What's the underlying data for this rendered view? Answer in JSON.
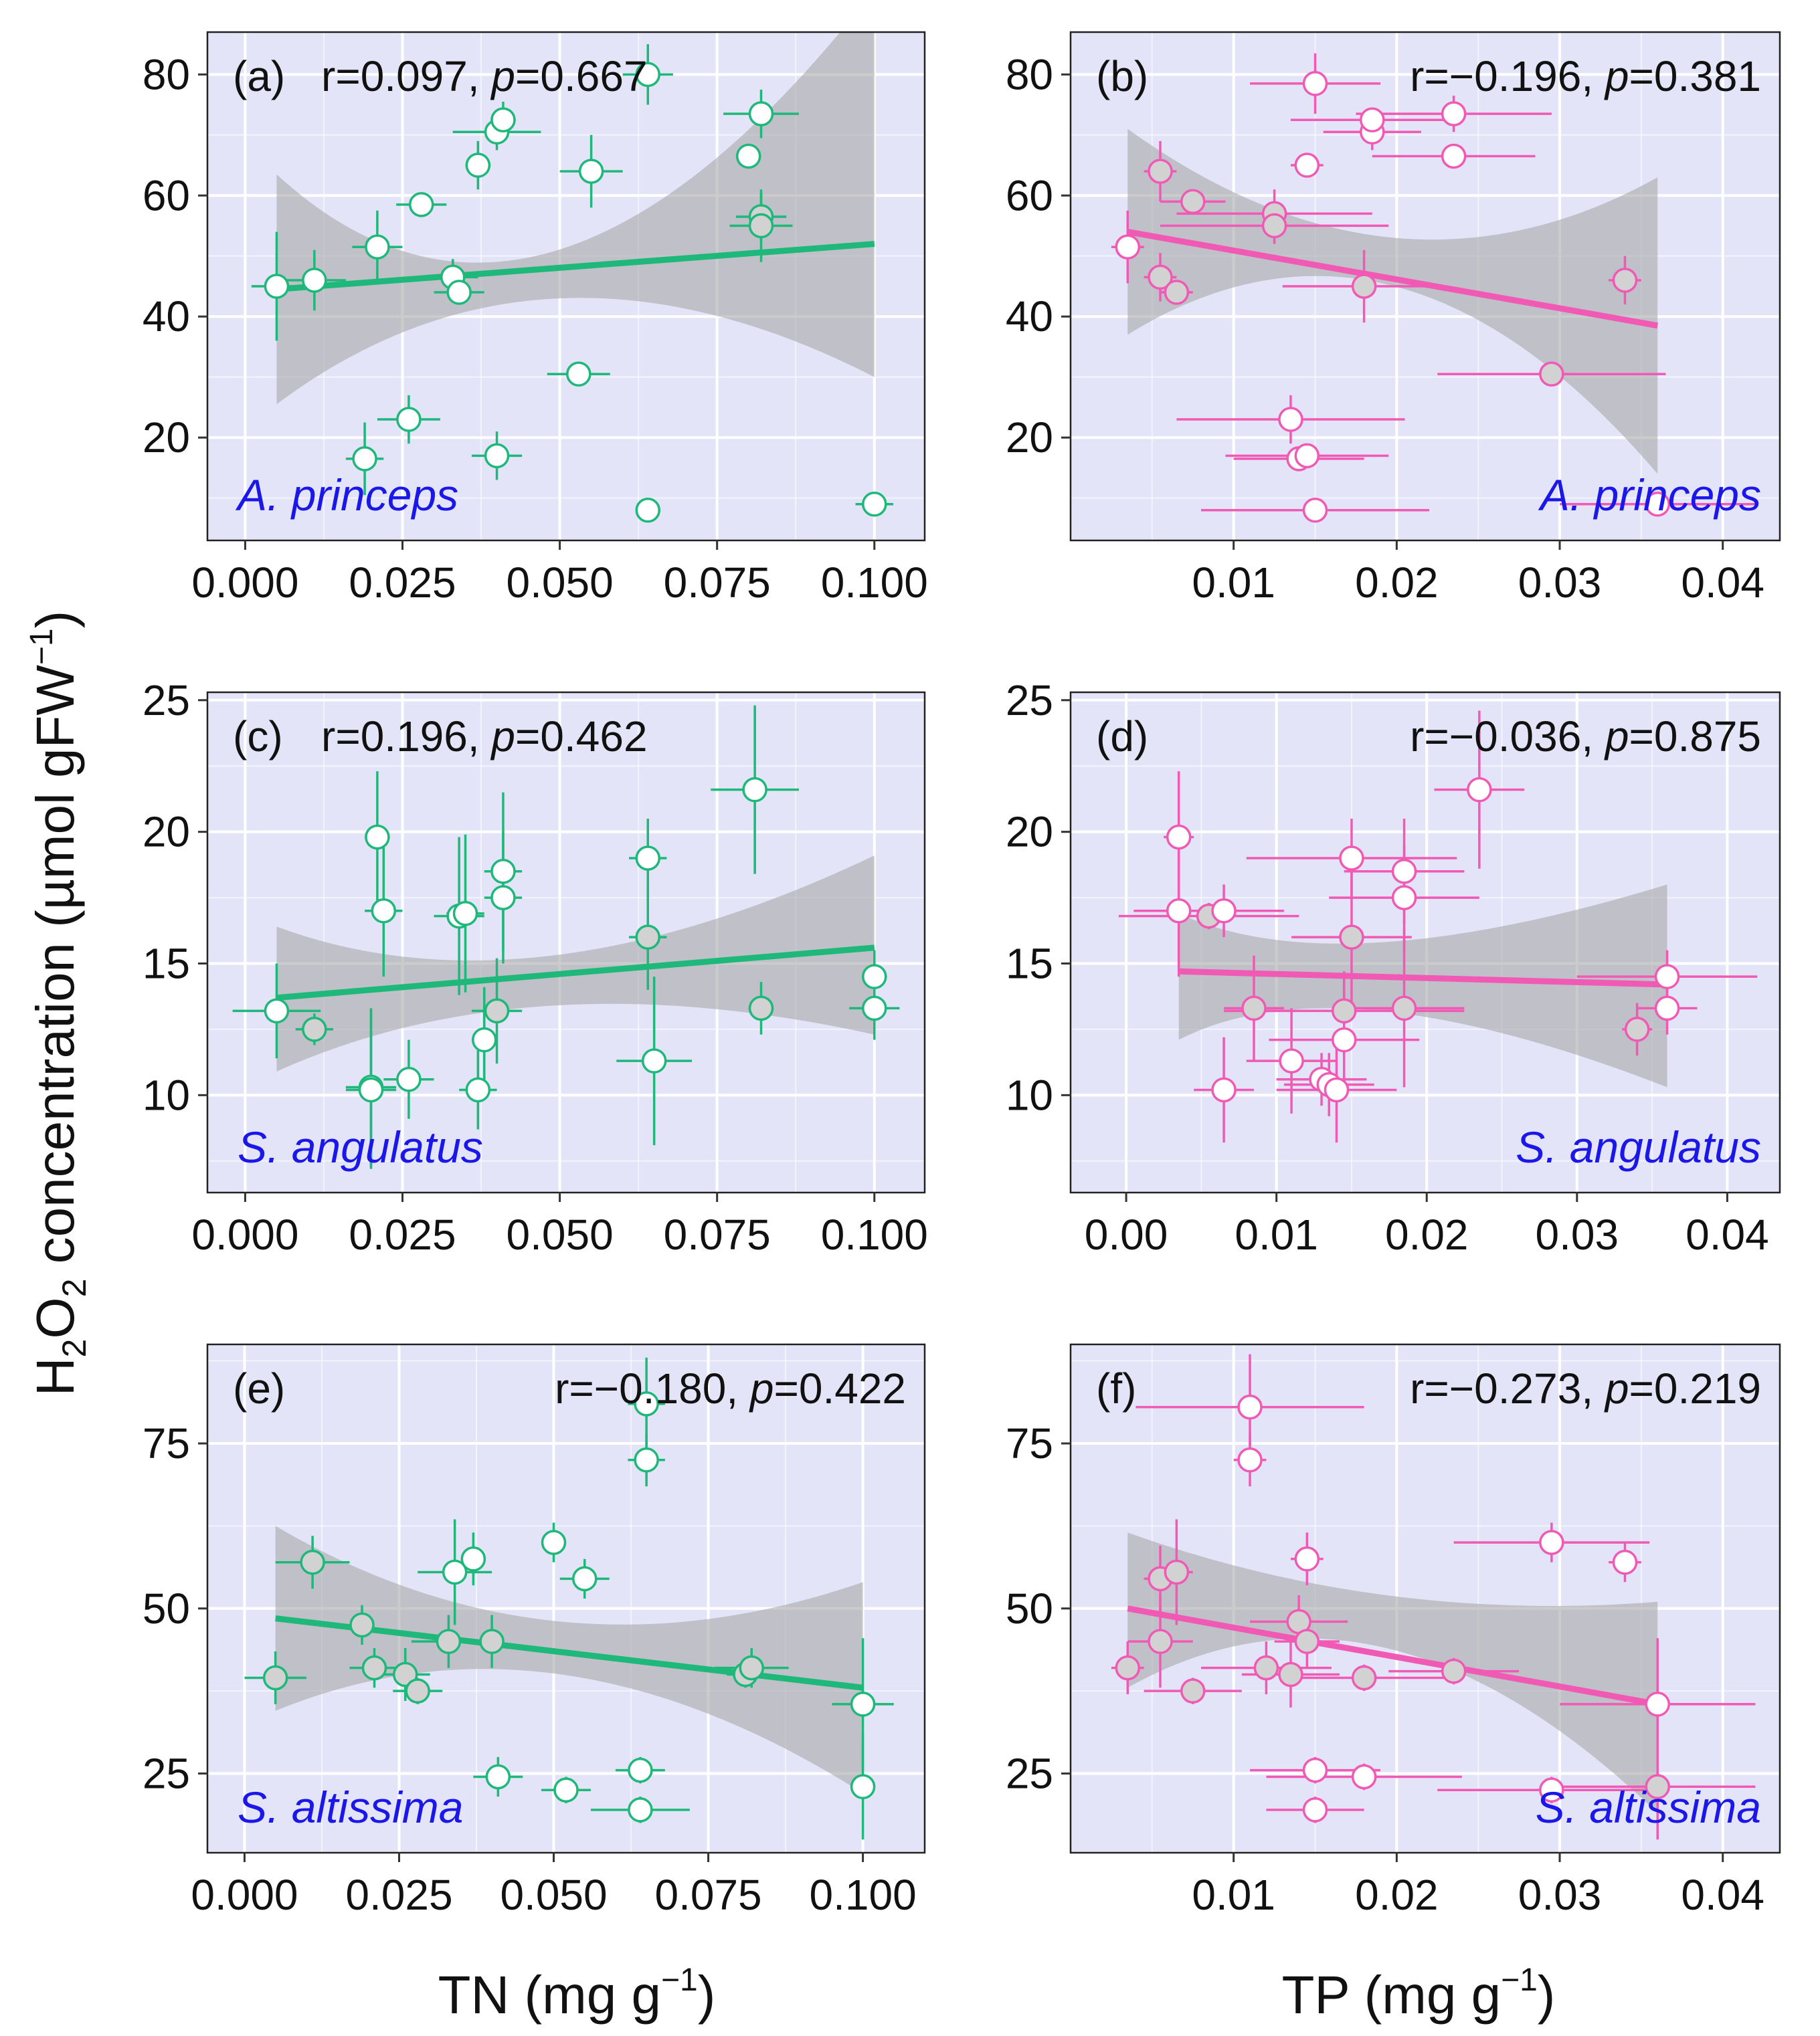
{
  "y_axis_label": {
    "prefix": "H",
    "sub1": "2",
    "mid": "O",
    "sub2": "2",
    "suffix": " concentration (µmol gFW",
    "sup": "−1",
    "close": ")"
  },
  "x_axis_labels": {
    "TN": {
      "text": "TN (mg g",
      "sup": "−1",
      "close": ")"
    },
    "TP": {
      "text": "TP (mg g",
      "sup": "−1",
      "close": ")"
    }
  },
  "colors": {
    "TN": "#1db87a",
    "TP": "#f05ab4",
    "panel_bg": "#e4e4f8",
    "ribbon": "#a8a8a8",
    "species": "#1a17e8",
    "point_fill": "#ffffff",
    "point_fill_shaded": "#d2d2d2"
  },
  "chart_data": [
    {
      "id": "a",
      "type": "scatter",
      "letter": "(a)",
      "x_var": "TN",
      "color_key": "TN",
      "species": "A. princeps",
      "stats": {
        "r": "r=0.097, ",
        "p_label": "p",
        "p": "=0.667"
      },
      "stats_anchor": "start",
      "xlim": [
        -0.006,
        0.108
      ],
      "ylim": [
        3,
        87
      ],
      "xticks": [
        0,
        0.025,
        0.05,
        0.075,
        0.1
      ],
      "xtick_labels": [
        "0.000",
        "0.025",
        "0.050",
        "0.075",
        "0.100"
      ],
      "yticks": [
        20,
        40,
        60,
        80
      ],
      "ytick_labels": [
        "20",
        "40",
        "60",
        "80"
      ],
      "fit": {
        "x0": 0.005,
        "y0": 44.5,
        "x1": 0.1,
        "y1": 52,
        "ci_lo": [
          25.5,
          43,
          30
        ],
        "ci_hi": [
          63.5,
          51,
          94
        ],
        "ci_x": [
          0.005,
          0.047,
          0.1
        ]
      },
      "points": [
        [
          0.005,
          45,
          0.004,
          9,
          0
        ],
        [
          0.011,
          46,
          0.005,
          5,
          0
        ],
        [
          0.019,
          16.5,
          0.003,
          6,
          0
        ],
        [
          0.021,
          51.5,
          0.004,
          6,
          0
        ],
        [
          0.026,
          23,
          0.005,
          4,
          0
        ],
        [
          0.028,
          58.5,
          0.004,
          2,
          0
        ],
        [
          0.033,
          46.5,
          0.004,
          3,
          0
        ],
        [
          0.034,
          44,
          0.004,
          2,
          0
        ],
        [
          0.037,
          65,
          0.002,
          4,
          0
        ],
        [
          0.04,
          17,
          0.004,
          4,
          0
        ],
        [
          0.04,
          70.5,
          0.007,
          3,
          0
        ],
        [
          0.041,
          72.5,
          0.002,
          3,
          0
        ],
        [
          0.053,
          30.5,
          0.005,
          2,
          0
        ],
        [
          0.055,
          64,
          0.005,
          6,
          0
        ],
        [
          0.064,
          8,
          0.001,
          1,
          0
        ],
        [
          0.064,
          80,
          0.004,
          5,
          0
        ],
        [
          0.08,
          66.5,
          0.002,
          2,
          0
        ],
        [
          0.082,
          73.5,
          0.006,
          4,
          0
        ],
        [
          0.082,
          56.5,
          0.004,
          4,
          1
        ],
        [
          0.082,
          55,
          0.005,
          6,
          1
        ],
        [
          0.1,
          9,
          0.003,
          1,
          0
        ]
      ]
    },
    {
      "id": "b",
      "type": "scatter",
      "letter": "(b)",
      "x_var": "TP",
      "color_key": "TP",
      "species": "A. princeps",
      "stats": {
        "r": "r=−0.196, ",
        "p_label": "p",
        "p": "=0.381"
      },
      "stats_anchor": "end",
      "xlim": [
        0,
        0.0435
      ],
      "ylim": [
        3,
        87
      ],
      "xticks": [
        0.01,
        0.02,
        0.03,
        0.04
      ],
      "xtick_labels": [
        "0.01",
        "0.02",
        "0.03",
        "0.04"
      ],
      "yticks": [
        20,
        40,
        60,
        80
      ],
      "ytick_labels": [
        "20",
        "40",
        "60",
        "80"
      ],
      "fit": {
        "x0": 0.0035,
        "y0": 54,
        "x1": 0.036,
        "y1": 38.5,
        "ci_lo": [
          37,
          45,
          14
        ],
        "ci_hi": [
          71,
          53,
          63
        ],
        "ci_x": [
          0.0035,
          0.02,
          0.036
        ]
      },
      "points": [
        [
          0.0035,
          51.5,
          0.001,
          6,
          0
        ],
        [
          0.0055,
          64,
          0.001,
          5,
          1
        ],
        [
          0.0055,
          46.5,
          0.001,
          4,
          1
        ],
        [
          0.0065,
          44,
          0.001,
          2,
          1
        ],
        [
          0.0075,
          59,
          0.002,
          2,
          1
        ],
        [
          0.0125,
          57,
          0.006,
          4,
          1
        ],
        [
          0.0125,
          55,
          0.007,
          3,
          1
        ],
        [
          0.0135,
          23,
          0.007,
          4,
          0
        ],
        [
          0.014,
          16.5,
          0.004,
          2,
          0
        ],
        [
          0.0145,
          17,
          0.005,
          2,
          0
        ],
        [
          0.0145,
          65,
          0.001,
          2,
          0
        ],
        [
          0.015,
          78.5,
          0.004,
          5,
          0
        ],
        [
          0.015,
          8,
          0.007,
          1,
          0
        ],
        [
          0.018,
          45,
          0.005,
          6,
          1
        ],
        [
          0.0185,
          70.5,
          0.003,
          3,
          0
        ],
        [
          0.0185,
          72.5,
          0.005,
          2,
          0
        ],
        [
          0.0235,
          66.5,
          0.005,
          2,
          0
        ],
        [
          0.0235,
          73.5,
          0.006,
          3,
          0
        ],
        [
          0.0295,
          30.5,
          0.007,
          2,
          1
        ],
        [
          0.034,
          46,
          0.001,
          4,
          1
        ],
        [
          0.036,
          9,
          0.006,
          1,
          0
        ]
      ]
    },
    {
      "id": "c",
      "type": "scatter",
      "letter": "(c)",
      "x_var": "TN",
      "color_key": "TN",
      "species": "S. angulatus",
      "stats": {
        "r": "r=0.196, ",
        "p_label": "p",
        "p": "=0.462"
      },
      "stats_anchor": "start",
      "xlim": [
        -0.006,
        0.108
      ],
      "ylim": [
        6.3,
        25.3
      ],
      "xticks": [
        0,
        0.025,
        0.05,
        0.075,
        0.1
      ],
      "xtick_labels": [
        "0.000",
        "0.025",
        "0.050",
        "0.075",
        "0.100"
      ],
      "yticks": [
        10,
        15,
        20,
        25
      ],
      "ytick_labels": [
        "10",
        "15",
        "20",
        "25"
      ],
      "fit": {
        "x0": 0.005,
        "y0": 13.7,
        "x1": 0.1,
        "y1": 15.6,
        "ci_lo": [
          10.9,
          13.4,
          12.3
        ],
        "ci_hi": [
          16.4,
          15.3,
          19.1
        ],
        "ci_x": [
          0.005,
          0.045,
          0.1
        ]
      },
      "points": [
        [
          0.005,
          13.2,
          0.007,
          1.8,
          0
        ],
        [
          0.011,
          12.5,
          0.003,
          0.6,
          1
        ],
        [
          0.02,
          10.3,
          0.004,
          3,
          0
        ],
        [
          0.02,
          10.2,
          0.004,
          3,
          0
        ],
        [
          0.021,
          19.8,
          0.002,
          2.5,
          0
        ],
        [
          0.022,
          17,
          0.003,
          2.5,
          0
        ],
        [
          0.026,
          10.6,
          0.004,
          1.5,
          0
        ],
        [
          0.034,
          16.8,
          0.004,
          3,
          0
        ],
        [
          0.035,
          16.9,
          0.003,
          3,
          0
        ],
        [
          0.037,
          10.2,
          0.003,
          1.5,
          0
        ],
        [
          0.038,
          12.1,
          0.002,
          2,
          0
        ],
        [
          0.04,
          13.2,
          0.004,
          2,
          1
        ],
        [
          0.041,
          18.5,
          0.003,
          3,
          0
        ],
        [
          0.041,
          17.5,
          0.003,
          2.5,
          0
        ],
        [
          0.064,
          19,
          0.003,
          1.5,
          0
        ],
        [
          0.064,
          16,
          0.003,
          2,
          1
        ],
        [
          0.065,
          11.3,
          0.006,
          3.2,
          0
        ],
        [
          0.081,
          21.6,
          0.007,
          3.2,
          0
        ],
        [
          0.082,
          13.3,
          0.002,
          1,
          1
        ],
        [
          0.1,
          14.5,
          0.002,
          1,
          0
        ],
        [
          0.1,
          13.3,
          0.004,
          1.2,
          0
        ]
      ]
    },
    {
      "id": "d",
      "type": "scatter",
      "letter": "(d)",
      "x_var": "TP",
      "color_key": "TP",
      "species": "S. angulatus",
      "stats": {
        "r": "r=−0.036, ",
        "p_label": "p",
        "p": "=0.875"
      },
      "stats_anchor": "end",
      "xlim": [
        -0.0037,
        0.0435
      ],
      "ylim": [
        6.3,
        25.3
      ],
      "xticks": [
        0,
        0.01,
        0.02,
        0.03,
        0.04
      ],
      "xtick_labels": [
        "0.00",
        "0.01",
        "0.02",
        "0.03",
        "0.04"
      ],
      "yticks": [
        10,
        15,
        20,
        25
      ],
      "ytick_labels": [
        "10",
        "15",
        "20",
        "25"
      ],
      "fit": {
        "x0": 0.0035,
        "y0": 14.7,
        "x1": 0.036,
        "y1": 14.2,
        "ci_lo": [
          12.1,
          13.2,
          10.3
        ],
        "ci_hi": [
          16.9,
          15.8,
          18
        ],
        "ci_x": [
          0.0035,
          0.014,
          0.036
        ]
      },
      "points": [
        [
          0.0035,
          19.8,
          0.001,
          2.5,
          0
        ],
        [
          0.0035,
          17,
          0.003,
          2.5,
          0
        ],
        [
          0.0055,
          16.8,
          0.006,
          0.5,
          1
        ],
        [
          0.0065,
          17,
          0.004,
          1,
          0
        ],
        [
          0.0065,
          10.2,
          0.002,
          2,
          0
        ],
        [
          0.0085,
          13.3,
          0.002,
          2,
          1
        ],
        [
          0.011,
          11.3,
          0.003,
          2,
          0
        ],
        [
          0.013,
          10.6,
          0.003,
          1,
          0
        ],
        [
          0.0135,
          10.4,
          0.003,
          1.2,
          0
        ],
        [
          0.014,
          10.2,
          0.004,
          2,
          0
        ],
        [
          0.0145,
          13.2,
          0.008,
          1.5,
          1
        ],
        [
          0.0145,
          12.1,
          0.005,
          2,
          0
        ],
        [
          0.015,
          19,
          0.007,
          1.5,
          0
        ],
        [
          0.015,
          16,
          0.004,
          3,
          1
        ],
        [
          0.0185,
          18.5,
          0.004,
          2,
          0
        ],
        [
          0.0185,
          17.5,
          0.005,
          2,
          0
        ],
        [
          0.0185,
          13.3,
          0.004,
          3,
          1
        ],
        [
          0.0235,
          21.6,
          0.003,
          3,
          0
        ],
        [
          0.034,
          12.5,
          0.001,
          1,
          1
        ],
        [
          0.036,
          14.5,
          0.006,
          1,
          0
        ],
        [
          0.036,
          13.3,
          0.002,
          1,
          0
        ]
      ]
    },
    {
      "id": "e",
      "type": "scatter",
      "letter": "(e)",
      "x_var": "TN",
      "color_key": "TN",
      "species": "S. altissima",
      "stats": {
        "r": "r=−0.180, ",
        "p_label": "p",
        "p": "=0.422"
      },
      "stats_anchor": "end",
      "xlim": [
        -0.006,
        0.11
      ],
      "ylim": [
        13,
        90
      ],
      "xticks": [
        0,
        0.025,
        0.05,
        0.075,
        0.1
      ],
      "xtick_labels": [
        "0.000",
        "0.025",
        "0.050",
        "0.075",
        "0.100"
      ],
      "yticks": [
        25,
        50,
        75
      ],
      "ytick_labels": [
        "25",
        "50",
        "75"
      ],
      "fit": {
        "x0": 0.005,
        "y0": 48.5,
        "x1": 0.1,
        "y1": 38,
        "ci_lo": [
          34.5,
          40,
          22
        ],
        "ci_hi": [
          62.5,
          48,
          54
        ],
        "ci_x": [
          0.005,
          0.05,
          0.1
        ]
      },
      "points": [
        [
          0.005,
          39.5,
          0.005,
          4,
          1
        ],
        [
          0.011,
          57,
          0.006,
          4,
          1
        ],
        [
          0.019,
          47.5,
          0.002,
          3,
          1
        ],
        [
          0.021,
          41,
          0.004,
          3,
          1
        ],
        [
          0.026,
          40,
          0.004,
          4,
          1
        ],
        [
          0.028,
          37.5,
          0.004,
          2,
          1
        ],
        [
          0.033,
          45,
          0.006,
          4,
          1
        ],
        [
          0.034,
          55.5,
          0.006,
          8,
          0
        ],
        [
          0.037,
          57.5,
          0.002,
          4,
          0
        ],
        [
          0.04,
          45,
          0.002,
          4,
          1
        ],
        [
          0.041,
          24.5,
          0.004,
          3,
          0
        ],
        [
          0.05,
          60,
          0.002,
          3,
          0
        ],
        [
          0.052,
          22.5,
          0.004,
          2,
          0
        ],
        [
          0.055,
          54.5,
          0.004,
          3,
          0
        ],
        [
          0.064,
          25.5,
          0.004,
          2,
          0
        ],
        [
          0.064,
          19.5,
          0.008,
          2,
          0
        ],
        [
          0.065,
          81,
          0.003,
          7,
          0
        ],
        [
          0.065,
          72.5,
          0.003,
          4,
          0
        ],
        [
          0.081,
          40,
          0.003,
          2,
          1
        ],
        [
          0.082,
          41,
          0.006,
          3,
          1
        ],
        [
          0.1,
          35.5,
          0.005,
          10,
          0
        ],
        [
          0.1,
          23,
          0.001,
          8,
          0
        ]
      ]
    },
    {
      "id": "f",
      "type": "scatter",
      "letter": "(f)",
      "x_var": "TP",
      "color_key": "TP",
      "species": "S. altissima",
      "stats": {
        "r": "r=−0.273, ",
        "p_label": "p",
        "p": "=0.219"
      },
      "stats_anchor": "end",
      "xlim": [
        0,
        0.0435
      ],
      "ylim": [
        13,
        90
      ],
      "xticks": [
        0.01,
        0.02,
        0.03,
        0.04
      ],
      "xtick_labels": [
        "0.01",
        "0.02",
        "0.03",
        "0.04"
      ],
      "yticks": [
        25,
        50,
        75
      ],
      "ytick_labels": [
        "25",
        "50",
        "75"
      ],
      "fit": {
        "x0": 0.0035,
        "y0": 50,
        "x1": 0.036,
        "y1": 35.5,
        "ci_lo": [
          38,
          44,
          19
        ],
        "ci_hi": [
          61.5,
          52,
          51
        ],
        "ci_x": [
          0.0035,
          0.019,
          0.036
        ]
      },
      "points": [
        [
          0.0035,
          41,
          0.001,
          4,
          1
        ],
        [
          0.0055,
          54.5,
          0.001,
          5,
          1
        ],
        [
          0.0055,
          45,
          0.002,
          7,
          1
        ],
        [
          0.0065,
          55.5,
          0.001,
          8,
          1
        ],
        [
          0.0075,
          37.5,
          0.003,
          2,
          1
        ],
        [
          0.011,
          80.5,
          0.007,
          8,
          0
        ],
        [
          0.011,
          72.5,
          0.001,
          4,
          0
        ],
        [
          0.012,
          41,
          0.004,
          4,
          1
        ],
        [
          0.0135,
          40,
          0.003,
          5,
          1
        ],
        [
          0.014,
          48,
          0.003,
          4,
          1
        ],
        [
          0.0145,
          45,
          0.002,
          4,
          1
        ],
        [
          0.0145,
          57.5,
          0.001,
          4,
          0
        ],
        [
          0.015,
          25.5,
          0.004,
          2,
          0
        ],
        [
          0.015,
          19.5,
          0.003,
          2,
          0
        ],
        [
          0.018,
          39.5,
          0.005,
          2,
          1
        ],
        [
          0.018,
          24.5,
          0.006,
          2,
          0
        ],
        [
          0.0235,
          40.5,
          0.004,
          2,
          1
        ],
        [
          0.0295,
          60,
          0.006,
          3,
          0
        ],
        [
          0.0295,
          22.5,
          0.007,
          2,
          0
        ],
        [
          0.034,
          57,
          0.001,
          3,
          0
        ],
        [
          0.036,
          35.5,
          0.006,
          10,
          0
        ],
        [
          0.036,
          23,
          0.006,
          8,
          1
        ]
      ]
    }
  ]
}
